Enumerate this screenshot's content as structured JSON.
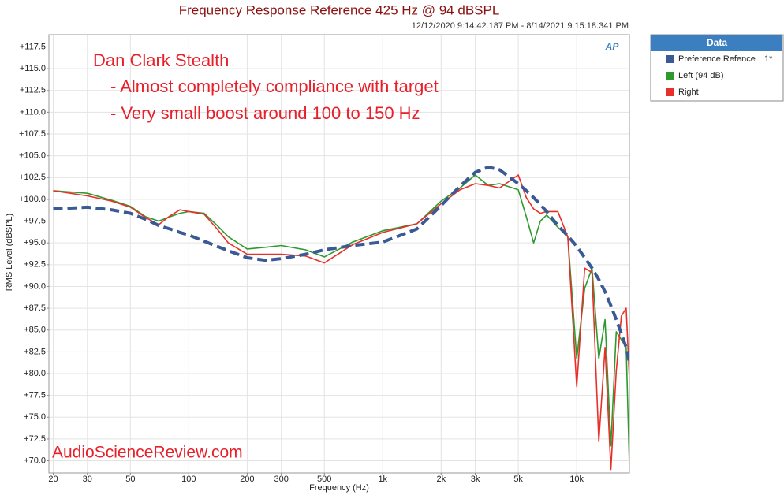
{
  "chart_data": {
    "type": "line",
    "title": "Frequency Response Reference 425 Hz @ 94 dBSPL",
    "subtitle": "12/12/2020 9:14:42.187 PM - 8/14/2021 9:15:18.341 PM",
    "xlabel": "Frequency (Hz)",
    "ylabel": "RMS Level (dBSPL)",
    "annotations": [
      "Dan Clark Stealth",
      "- Almost completely compliance with target",
      "- Very small boost around 100 to 150 Hz"
    ],
    "watermark": "AudioScienceReview.com",
    "logo": "AP",
    "legend_title": "Data",
    "reference_marker": "1*",
    "legend": "outside right",
    "grid": true,
    "xscale": "log",
    "xlim": [
      19,
      18700
    ],
    "ylim": [
      68.6,
      118.9
    ],
    "xticks": [
      20,
      30,
      50,
      100,
      200,
      300,
      500,
      {
        "value": 1000,
        "label": "1k"
      },
      {
        "value": 2000,
        "label": "2k"
      },
      {
        "value": 3000,
        "label": "3k"
      },
      {
        "value": 5000,
        "label": "5k"
      },
      {
        "value": 10000,
        "label": "10k"
      }
    ],
    "yticks": [
      {
        "value": 117.5,
        "label": "+117.5"
      },
      {
        "value": 115,
        "label": "+115.0"
      },
      {
        "value": 112.5,
        "label": "+112.5"
      },
      {
        "value": 110,
        "label": "+110.0"
      },
      {
        "value": 107.5,
        "label": "+107.5"
      },
      {
        "value": 105,
        "label": "+105.0"
      },
      {
        "value": 102.5,
        "label": "+102.5"
      },
      {
        "value": 100,
        "label": "+100.0"
      },
      {
        "value": 97.5,
        "label": "+97.5"
      },
      {
        "value": 95,
        "label": "+95.0"
      },
      {
        "value": 92.5,
        "label": "+92.5"
      },
      {
        "value": 90,
        "label": "+90.0"
      },
      {
        "value": 87.5,
        "label": "+87.5"
      },
      {
        "value": 85,
        "label": "+85.0"
      },
      {
        "value": 82.5,
        "label": "+82.5"
      },
      {
        "value": 80,
        "label": "+80.0"
      },
      {
        "value": 77.5,
        "label": "+77.5"
      },
      {
        "value": 75,
        "label": "+75.0"
      },
      {
        "value": 72.5,
        "label": "+72.5"
      },
      {
        "value": 70,
        "label": "+70.0"
      }
    ],
    "x": [
      20,
      30,
      40,
      50,
      60,
      70,
      80,
      90,
      100,
      120,
      140,
      160,
      200,
      250,
      300,
      400,
      500,
      700,
      1000,
      1500,
      2000,
      2500,
      3000,
      3500,
      4000,
      5000,
      5500,
      6000,
      6500,
      7000,
      8000,
      9000,
      10000,
      11000,
      12000,
      13000,
      14000,
      15000,
      16000,
      17000,
      18000,
      18700
    ],
    "series": [
      {
        "name": "Left (94 dB)",
        "color": "#2e9a2e",
        "dashed": false,
        "values": [
          101.0,
          100.7,
          99.9,
          99.2,
          98.0,
          97.5,
          98.0,
          98.4,
          98.6,
          98.4,
          97.0,
          95.7,
          94.3,
          94.5,
          94.7,
          94.2,
          93.4,
          95.1,
          96.4,
          97.2,
          99.8,
          101.3,
          102.8,
          101.6,
          101.8,
          101.1,
          98.0,
          95.0,
          97.5,
          98.2,
          96.8,
          95.7,
          81.7,
          89.8,
          92.1,
          81.7,
          86.2,
          71.7,
          84.8,
          83.9,
          83.0,
          69.4
        ]
      },
      {
        "name": "Right",
        "color": "#e8302a",
        "dashed": false,
        "values": [
          101.0,
          100.4,
          99.8,
          99.1,
          97.9,
          97.1,
          98.1,
          98.8,
          98.6,
          98.3,
          96.6,
          95.0,
          93.7,
          93.7,
          93.7,
          93.5,
          92.7,
          94.8,
          96.2,
          97.2,
          99.5,
          101.1,
          101.8,
          101.6,
          101.3,
          102.8,
          100.2,
          98.9,
          98.4,
          98.6,
          98.6,
          95.7,
          78.5,
          92.1,
          91.6,
          72.2,
          83.0,
          69.0,
          80.3,
          86.6,
          87.5,
          79.4
        ]
      },
      {
        "name": "Preference Refence",
        "color": "#3a5a96",
        "dashed": true,
        "values": [
          98.9,
          99.1,
          98.8,
          98.4,
          97.7,
          97.0,
          96.6,
          96.2,
          95.9,
          95.2,
          94.6,
          94.1,
          93.3,
          93.0,
          93.2,
          93.7,
          94.2,
          94.7,
          95.1,
          96.6,
          99.3,
          101.5,
          103.1,
          103.7,
          103.4,
          101.8,
          101.0,
          100.2,
          99.4,
          98.6,
          97.0,
          95.8,
          94.6,
          93.3,
          92.1,
          90.8,
          89.4,
          87.8,
          86.2,
          84.6,
          83.0,
          81.2
        ]
      }
    ]
  }
}
